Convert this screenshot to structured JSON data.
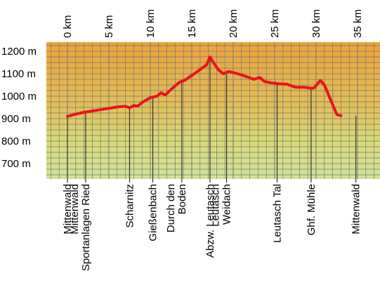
{
  "chart_data": {
    "type": "line",
    "title": "",
    "xlabel": "",
    "ylabel": "",
    "x_unit": "km",
    "y_unit": "m",
    "xlim": [
      0,
      35
    ],
    "ylim": [
      600,
      1250
    ],
    "x_ticks": [
      "0 km",
      "5 km",
      "10 km",
      "15 km",
      "20 km",
      "25 km",
      "30 km",
      "35 km"
    ],
    "x_tick_values": [
      0,
      5,
      10,
      15,
      20,
      25,
      30,
      35
    ],
    "y_ticks": [
      "1200 m",
      "1100 m",
      "1000 m",
      "900 m",
      "800 m",
      "700 m"
    ],
    "y_tick_values": [
      1200,
      1100,
      1000,
      900,
      800,
      700
    ],
    "grid": true,
    "background": "gradient orange (top) to light green (bottom)",
    "line_color": "#e8141e",
    "series": [
      {
        "x": [
          0,
          1,
          2,
          4,
          6,
          7,
          7.5,
          8,
          8.5,
          9,
          10,
          10.8,
          11.3,
          11.8,
          12.5,
          13.5,
          14.2,
          15.5,
          16.8,
          17.2,
          17.6,
          18.2,
          18.8,
          19.5,
          21,
          22.5,
          23.2,
          23.8,
          24.5,
          25.5,
          26.5,
          27.5,
          28.5,
          29.5,
          29.8,
          30.5,
          31,
          32.5,
          33
        ],
        "y": [
          910,
          920,
          928,
          940,
          952,
          955,
          948,
          958,
          956,
          972,
          993,
          1000,
          1015,
          1005,
          1030,
          1062,
          1072,
          1105,
          1140,
          1175,
          1150,
          1118,
          1100,
          1110,
          1095,
          1075,
          1083,
          1065,
          1060,
          1055,
          1053,
          1040,
          1040,
          1035,
          1038,
          1070,
          1050,
          918,
          913
        ]
      }
    ],
    "waypoints": [
      {
        "label": "Mittenwald",
        "km": 0
      },
      {
        "label": "Mittenwald Sportanlagen Ried",
        "km": 2.2
      },
      {
        "label": "Scharnitz",
        "km": 7.5
      },
      {
        "label": "Gießenbach",
        "km": 10.3
      },
      {
        "label": "Durch den Boden",
        "km": 13.8
      },
      {
        "label": "Abzw. Leutasch",
        "km": 17.2
      },
      {
        "label": "Leutasch Weidach",
        "km": 19.2
      },
      {
        "label": "Leutasch Tal",
        "km": 25.3
      },
      {
        "label": "Ghf. Mühle",
        "km": 29.4
      },
      {
        "label": "Mittenwald",
        "km": 34.8
      }
    ]
  },
  "waypoint_labels": [
    {
      "lines": [
        "Mittenwald"
      ]
    },
    {
      "lines": [
        "Mittenwald",
        "Sportanlagen Ried"
      ]
    },
    {
      "lines": [
        "Scharnitz"
      ]
    },
    {
      "lines": [
        "Gießenbach"
      ]
    },
    {
      "lines": [
        "Durch den",
        "Boden"
      ]
    },
    {
      "lines": [
        "Abzw. Leutasch"
      ]
    },
    {
      "lines": [
        "Leutasch",
        "Weidach"
      ]
    },
    {
      "lines": [
        "Leutasch Tal"
      ]
    },
    {
      "lines": [
        "Ghf. Mühle"
      ]
    },
    {
      "lines": [
        "Mittenwald"
      ]
    }
  ]
}
